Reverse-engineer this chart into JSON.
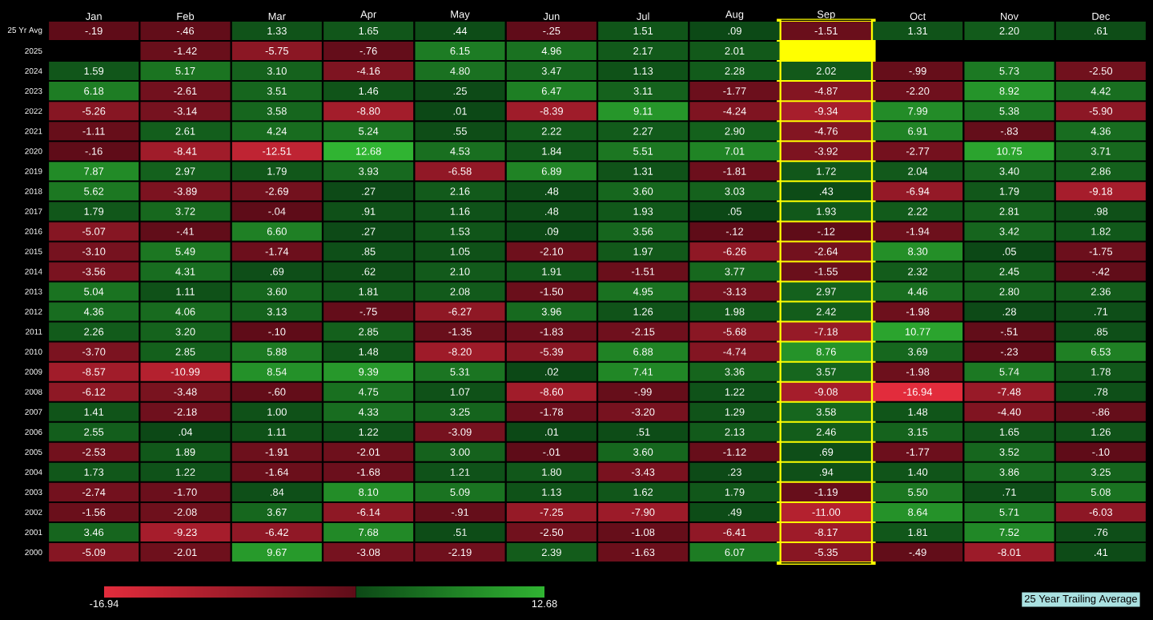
{
  "chart_data": {
    "type": "heatmap",
    "categories": [
      "Jan",
      "Feb",
      "Mar",
      "Apr",
      "May",
      "Jun",
      "Jul",
      "Aug",
      "Sep",
      "Oct",
      "Nov",
      "Dec"
    ],
    "y_categories": [
      "25 Yr Avg",
      "2025",
      "2024",
      "2023",
      "2022",
      "2021",
      "2020",
      "2019",
      "2018",
      "2017",
      "2016",
      "2015",
      "2014",
      "2013",
      "2012",
      "2011",
      "2010",
      "2009",
      "2008",
      "2007",
      "2006",
      "2005",
      "2004",
      "2003",
      "2002",
      "2001",
      "2000"
    ],
    "cells": [
      [
        -0.19,
        -0.46,
        1.33,
        1.65,
        0.44,
        -0.25,
        1.51,
        0.09,
        -1.51,
        1.31,
        2.2,
        0.61
      ],
      [
        null,
        -1.42,
        -5.75,
        -0.76,
        6.15,
        4.96,
        2.17,
        2.01,
        null,
        null,
        null,
        null
      ],
      [
        1.59,
        5.17,
        3.1,
        -4.16,
        4.8,
        3.47,
        1.13,
        2.28,
        2.02,
        -0.99,
        5.73,
        -2.5
      ],
      [
        6.18,
        -2.61,
        3.51,
        1.46,
        0.25,
        6.47,
        3.11,
        -1.77,
        -4.87,
        -2.2,
        8.92,
        4.42
      ],
      [
        -5.26,
        -3.14,
        3.58,
        -8.8,
        0.01,
        -8.39,
        9.11,
        -4.24,
        -9.34,
        7.99,
        5.38,
        -5.9
      ],
      [
        -1.11,
        2.61,
        4.24,
        5.24,
        0.55,
        2.22,
        2.27,
        2.9,
        -4.76,
        6.91,
        -0.83,
        4.36
      ],
      [
        -0.16,
        -8.41,
        -12.51,
        12.68,
        4.53,
        1.84,
        5.51,
        7.01,
        -3.92,
        -2.77,
        10.75,
        3.71
      ],
      [
        7.87,
        2.97,
        1.79,
        3.93,
        -6.58,
        6.89,
        1.31,
        -1.81,
        1.72,
        2.04,
        3.4,
        2.86
      ],
      [
        5.62,
        -3.89,
        -2.69,
        0.27,
        2.16,
        0.48,
        3.6,
        3.03,
        0.43,
        -6.94,
        1.79,
        -9.18
      ],
      [
        1.79,
        3.72,
        -0.04,
        0.91,
        1.16,
        0.48,
        1.93,
        0.05,
        1.93,
        2.22,
        2.81,
        0.98
      ],
      [
        -5.07,
        -0.41,
        6.6,
        0.27,
        1.53,
        0.09,
        3.56,
        -0.12,
        -0.12,
        -1.94,
        3.42,
        1.82
      ],
      [
        -3.1,
        5.49,
        -1.74,
        0.85,
        1.05,
        -2.1,
        1.97,
        -6.26,
        -2.64,
        8.3,
        0.05,
        -1.75
      ],
      [
        -3.56,
        4.31,
        0.69,
        0.62,
        2.1,
        1.91,
        -1.51,
        3.77,
        -1.55,
        2.32,
        2.45,
        -0.42
      ],
      [
        5.04,
        1.11,
        3.6,
        1.81,
        2.08,
        -1.5,
        4.95,
        -3.13,
        2.97,
        4.46,
        2.8,
        2.36
      ],
      [
        4.36,
        4.06,
        3.13,
        -0.75,
        -6.27,
        3.96,
        1.26,
        1.98,
        2.42,
        -1.98,
        0.28,
        0.71
      ],
      [
        2.26,
        3.2,
        -0.1,
        2.85,
        -1.35,
        -1.83,
        -2.15,
        -5.68,
        -7.18,
        10.77,
        -0.51,
        0.85
      ],
      [
        -3.7,
        2.85,
        5.88,
        1.48,
        -8.2,
        -5.39,
        6.88,
        -4.74,
        8.76,
        3.69,
        -0.23,
        6.53
      ],
      [
        -8.57,
        -10.99,
        8.54,
        9.39,
        5.31,
        0.02,
        7.41,
        3.36,
        3.57,
        -1.98,
        5.74,
        1.78
      ],
      [
        -6.12,
        -3.48,
        -0.6,
        4.75,
        1.07,
        -8.6,
        -0.99,
        1.22,
        -9.08,
        -16.94,
        -7.48,
        0.78
      ],
      [
        1.41,
        -2.18,
        1.0,
        4.33,
        3.25,
        -1.78,
        -3.2,
        1.29,
        3.58,
        1.48,
        -4.4,
        -0.86
      ],
      [
        2.55,
        0.04,
        1.11,
        1.22,
        -3.09,
        0.01,
        0.51,
        2.13,
        2.46,
        3.15,
        1.65,
        1.26
      ],
      [
        -2.53,
        1.89,
        -1.91,
        -2.01,
        3.0,
        -0.01,
        3.6,
        -1.12,
        0.69,
        -1.77,
        3.52,
        -0.1
      ],
      [
        1.73,
        1.22,
        -1.64,
        -1.68,
        1.21,
        1.8,
        -3.43,
        0.23,
        0.94,
        1.4,
        3.86,
        3.25
      ],
      [
        -2.74,
        -1.7,
        0.84,
        8.1,
        5.09,
        1.13,
        1.62,
        1.79,
        -1.19,
        5.5,
        0.71,
        5.08
      ],
      [
        -1.56,
        -2.08,
        3.67,
        -6.14,
        -0.91,
        -7.25,
        -7.9,
        0.49,
        -11.0,
        8.64,
        5.71,
        -6.03
      ],
      [
        3.46,
        -9.23,
        -6.42,
        7.68,
        0.51,
        -2.5,
        -1.08,
        -6.41,
        -8.17,
        1.81,
        7.52,
        0.76
      ],
      [
        -5.09,
        -2.01,
        9.67,
        -3.08,
        -2.19,
        2.39,
        -1.63,
        6.07,
        -5.35,
        -0.49,
        -8.01,
        0.41
      ]
    ],
    "cell_labels": [
      [
        "-.19",
        "-.46",
        "1.33",
        "1.65",
        ".44",
        "-.25",
        "1.51",
        ".09",
        "-1.51",
        "1.31",
        "2.20",
        ".61"
      ],
      [
        null,
        "-1.42",
        "-5.75",
        "-.76",
        "6.15",
        "4.96",
        "2.17",
        "2.01",
        null,
        null,
        null,
        null
      ],
      [
        "1.59",
        "5.17",
        "3.10",
        "-4.16",
        "4.80",
        "3.47",
        "1.13",
        "2.28",
        "2.02",
        "-.99",
        "5.73",
        "-2.50"
      ],
      [
        "6.18",
        "-2.61",
        "3.51",
        "1.46",
        ".25",
        "6.47",
        "3.11",
        "-1.77",
        "-4.87",
        "-2.20",
        "8.92",
        "4.42"
      ],
      [
        "-5.26",
        "-3.14",
        "3.58",
        "-8.80",
        ".01",
        "-8.39",
        "9.11",
        "-4.24",
        "-9.34",
        "7.99",
        "5.38",
        "-5.90"
      ],
      [
        "-1.11",
        "2.61",
        "4.24",
        "5.24",
        ".55",
        "2.22",
        "2.27",
        "2.90",
        "-4.76",
        "6.91",
        "-.83",
        "4.36"
      ],
      [
        "-.16",
        "-8.41",
        "-12.51",
        "12.68",
        "4.53",
        "1.84",
        "5.51",
        "7.01",
        "-3.92",
        "-2.77",
        "10.75",
        "3.71"
      ],
      [
        "7.87",
        "2.97",
        "1.79",
        "3.93",
        "-6.58",
        "6.89",
        "1.31",
        "-1.81",
        "1.72",
        "2.04",
        "3.40",
        "2.86"
      ],
      [
        "5.62",
        "-3.89",
        "-2.69",
        ".27",
        "2.16",
        ".48",
        "3.60",
        "3.03",
        ".43",
        "-6.94",
        "1.79",
        "-9.18"
      ],
      [
        "1.79",
        "3.72",
        "-.04",
        ".91",
        "1.16",
        ".48",
        "1.93",
        ".05",
        "1.93",
        "2.22",
        "2.81",
        ".98"
      ],
      [
        "-5.07",
        "-.41",
        "6.60",
        ".27",
        "1.53",
        ".09",
        "3.56",
        "-.12",
        "-.12",
        "-1.94",
        "3.42",
        "1.82"
      ],
      [
        "-3.10",
        "5.49",
        "-1.74",
        ".85",
        "1.05",
        "-2.10",
        "1.97",
        "-6.26",
        "-2.64",
        "8.30",
        ".05",
        "-1.75"
      ],
      [
        "-3.56",
        "4.31",
        ".69",
        ".62",
        "2.10",
        "1.91",
        "-1.51",
        "3.77",
        "-1.55",
        "2.32",
        "2.45",
        "-.42"
      ],
      [
        "5.04",
        "1.11",
        "3.60",
        "1.81",
        "2.08",
        "-1.50",
        "4.95",
        "-3.13",
        "2.97",
        "4.46",
        "2.80",
        "2.36"
      ],
      [
        "4.36",
        "4.06",
        "3.13",
        "-.75",
        "-6.27",
        "3.96",
        "1.26",
        "1.98",
        "2.42",
        "-1.98",
        ".28",
        ".71"
      ],
      [
        "2.26",
        "3.20",
        "-.10",
        "2.85",
        "-1.35",
        "-1.83",
        "-2.15",
        "-5.68",
        "-7.18",
        "10.77",
        "-.51",
        ".85"
      ],
      [
        "-3.70",
        "2.85",
        "5.88",
        "1.48",
        "-8.20",
        "-5.39",
        "6.88",
        "-4.74",
        "8.76",
        "3.69",
        "-.23",
        "6.53"
      ],
      [
        "-8.57",
        "-10.99",
        "8.54",
        "9.39",
        "5.31",
        ".02",
        "7.41",
        "3.36",
        "3.57",
        "-1.98",
        "5.74",
        "1.78"
      ],
      [
        "-6.12",
        "-3.48",
        "-.60",
        "4.75",
        "1.07",
        "-8.60",
        "-.99",
        "1.22",
        "-9.08",
        "-16.94",
        "-7.48",
        ".78"
      ],
      [
        "1.41",
        "-2.18",
        "1.00",
        "4.33",
        "3.25",
        "-1.78",
        "-3.20",
        "1.29",
        "3.58",
        "1.48",
        "-4.40",
        "-.86"
      ],
      [
        "2.55",
        ".04",
        "1.11",
        "1.22",
        "-3.09",
        ".01",
        ".51",
        "2.13",
        "2.46",
        "3.15",
        "1.65",
        "1.26"
      ],
      [
        "-2.53",
        "1.89",
        "-1.91",
        "-2.01",
        "3.00",
        "-.01",
        "3.60",
        "-1.12",
        ".69",
        "-1.77",
        "3.52",
        "-.10"
      ],
      [
        "1.73",
        "1.22",
        "-1.64",
        "-1.68",
        "1.21",
        "1.80",
        "-3.43",
        ".23",
        ".94",
        "1.40",
        "3.86",
        "3.25"
      ],
      [
        "-2.74",
        "-1.70",
        ".84",
        "8.10",
        "5.09",
        "1.13",
        "1.62",
        "1.79",
        "-1.19",
        "5.50",
        ".71",
        "5.08"
      ],
      [
        "-1.56",
        "-2.08",
        "3.67",
        "-6.14",
        "-.91",
        "-7.25",
        "-7.90",
        ".49",
        "-11.00",
        "8.64",
        "5.71",
        "-6.03"
      ],
      [
        "3.46",
        "-9.23",
        "-6.42",
        "7.68",
        ".51",
        "-2.50",
        "-1.08",
        "-6.41",
        "-8.17",
        "1.81",
        "7.52",
        ".76"
      ],
      [
        "-5.09",
        "-2.01",
        "9.67",
        "-3.08",
        "-2.19",
        "2.39",
        "-1.63",
        "6.07",
        "-5.35",
        "-.49",
        "-8.01",
        ".41"
      ]
    ],
    "clim": [
      -16.94,
      12.68
    ],
    "cticks": [
      -16.94,
      12.68
    ],
    "bands": [
      {
        "axis": "x",
        "from": "Sep",
        "to": "Sep",
        "color": "#ffff00"
      }
    ],
    "annotations": [
      "25 Year Trailing Average"
    ]
  }
}
